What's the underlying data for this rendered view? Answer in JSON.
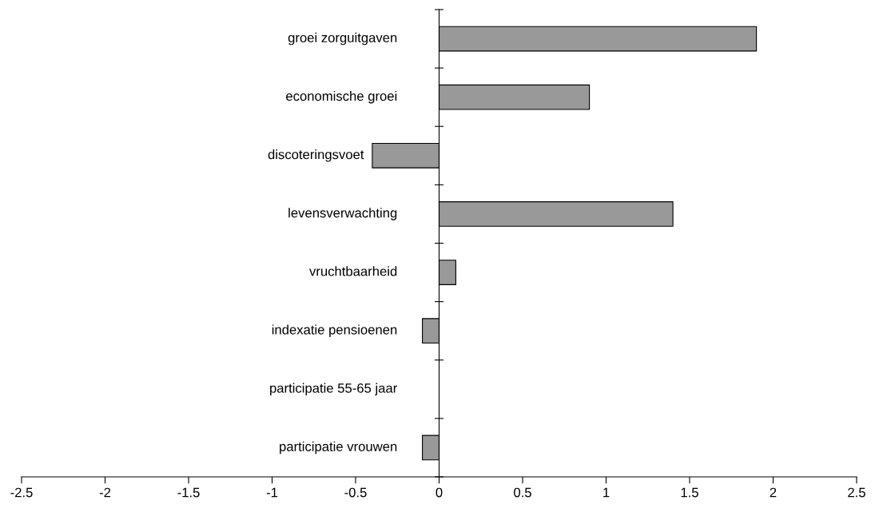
{
  "chart_data": {
    "type": "bar",
    "orientation": "horizontal",
    "categories": [
      "groei zorguitgaven",
      "economische groei",
      "discoteringsvoet",
      "levensverwachting",
      "vruchtbaarheid",
      "indexatie pensioenen",
      "participatie 55-65 jaar",
      "participatie vrouwen"
    ],
    "values": [
      1.9,
      0.9,
      -0.4,
      1.4,
      0.1,
      -0.1,
      0,
      -0.1
    ],
    "color": "#999999",
    "xlim": [
      -2.5,
      2.5
    ],
    "xticks": [
      -2.5,
      -2,
      -1.5,
      -1,
      -0.5,
      0,
      0.5,
      1,
      1.5,
      2,
      2.5
    ],
    "legend": false
  }
}
